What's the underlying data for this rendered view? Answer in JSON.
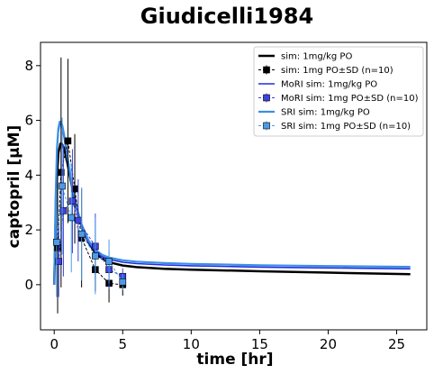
{
  "chart_data": {
    "type": "line",
    "title": "Giudicelli1984",
    "xlabel": "time [hr]",
    "ylabel": "captopril [µM]",
    "xlim": [
      -1.0,
      27.2
    ],
    "ylim": [
      -1.65,
      8.85
    ],
    "xticks": [
      0,
      5,
      10,
      15,
      20,
      25
    ],
    "yticks": [
      0,
      2,
      4,
      6,
      8
    ],
    "grid": false,
    "legend_position": "top-right",
    "series": [
      {
        "name": "sim: 1mg/kg PO",
        "kind": "line",
        "color": "#000000",
        "x": [
          0,
          0.1,
          0.2,
          0.3,
          0.45,
          0.55,
          0.7,
          0.85,
          1.0,
          1.25,
          1.5,
          1.75,
          2.0,
          2.5,
          3.0,
          3.5,
          4.0,
          5.0,
          6.0,
          8.0,
          10.0,
          15.0,
          20.0,
          26.0
        ],
        "y": [
          0,
          2.2,
          3.9,
          4.8,
          5.15,
          5.15,
          5.0,
          4.7,
          4.35,
          3.7,
          3.1,
          2.6,
          2.15,
          1.55,
          1.15,
          0.95,
          0.82,
          0.7,
          0.64,
          0.58,
          0.55,
          0.49,
          0.44,
          0.38
        ]
      },
      {
        "name": "sim: 1mg PO±SD (n=10)",
        "kind": "errorbar",
        "color": "#000000",
        "x": [
          0.25,
          0.5,
          1.0,
          1.5,
          2.0,
          3.0,
          4.0,
          5.0
        ],
        "y": [
          1.35,
          4.1,
          5.25,
          3.5,
          1.7,
          0.55,
          0.05,
          0.0
        ],
        "sd": [
          2.4,
          4.2,
          3.0,
          2.0,
          1.8,
          0.8,
          0.7,
          0.4
        ]
      },
      {
        "name": "MoRI sim: 1mg/kg PO",
        "kind": "line",
        "color": "#1f2fe0",
        "x": [
          0,
          0.1,
          0.2,
          0.3,
          0.4,
          0.5,
          0.6,
          0.75,
          0.9,
          1.0,
          1.25,
          1.5,
          1.75,
          2.0,
          2.5,
          3.0,
          3.5,
          4.0,
          5.0,
          6.0,
          8.0,
          10.0,
          15.0,
          20.0,
          26.0
        ],
        "y": [
          0,
          3.0,
          4.9,
          5.6,
          5.85,
          5.85,
          5.7,
          5.3,
          4.8,
          4.45,
          3.7,
          3.05,
          2.5,
          2.1,
          1.55,
          1.2,
          1.02,
          0.92,
          0.82,
          0.77,
          0.72,
          0.69,
          0.64,
          0.61,
          0.58
        ]
      },
      {
        "name": "MoRI sim: 1mg PO±SD (n=10)",
        "kind": "errorbar",
        "color": "#3f43dd",
        "x": [
          0.33,
          0.67,
          1.33,
          1.75,
          3.0,
          4.0,
          5.0
        ],
        "y": [
          0.85,
          2.7,
          3.05,
          2.35,
          1.4,
          0.55,
          0.3
        ],
        "sd": [
          1.3,
          2.4,
          1.9,
          1.5,
          1.2,
          0.7,
          0.3
        ]
      },
      {
        "name": "SRI sim: 1mg/kg PO",
        "kind": "line",
        "color": "#3c8ee5",
        "x": [
          0,
          0.1,
          0.2,
          0.3,
          0.4,
          0.5,
          0.6,
          0.75,
          0.9,
          1.0,
          1.25,
          1.5,
          1.75,
          2.0,
          2.5,
          3.0,
          3.5,
          4.0,
          5.0,
          6.0,
          8.0,
          10.0,
          15.0,
          20.0,
          26.0
        ],
        "y": [
          0,
          3.1,
          5.0,
          5.7,
          5.95,
          5.95,
          5.8,
          5.4,
          4.9,
          4.55,
          3.8,
          3.15,
          2.6,
          2.2,
          1.62,
          1.27,
          1.09,
          0.99,
          0.89,
          0.84,
          0.79,
          0.76,
          0.71,
          0.68,
          0.65
        ]
      },
      {
        "name": "SRI sim: 1mg PO±SD (n=10)",
        "kind": "errorbar",
        "color": "#4c9be8",
        "x": [
          0.17,
          0.58,
          1.25,
          2.0,
          3.0,
          4.0,
          5.0
        ],
        "y": [
          1.55,
          3.6,
          2.45,
          1.85,
          1.05,
          0.85,
          0.1
        ],
        "sd": [
          2.0,
          2.5,
          2.0,
          1.7,
          1.4,
          0.8,
          0.3
        ]
      }
    ]
  }
}
